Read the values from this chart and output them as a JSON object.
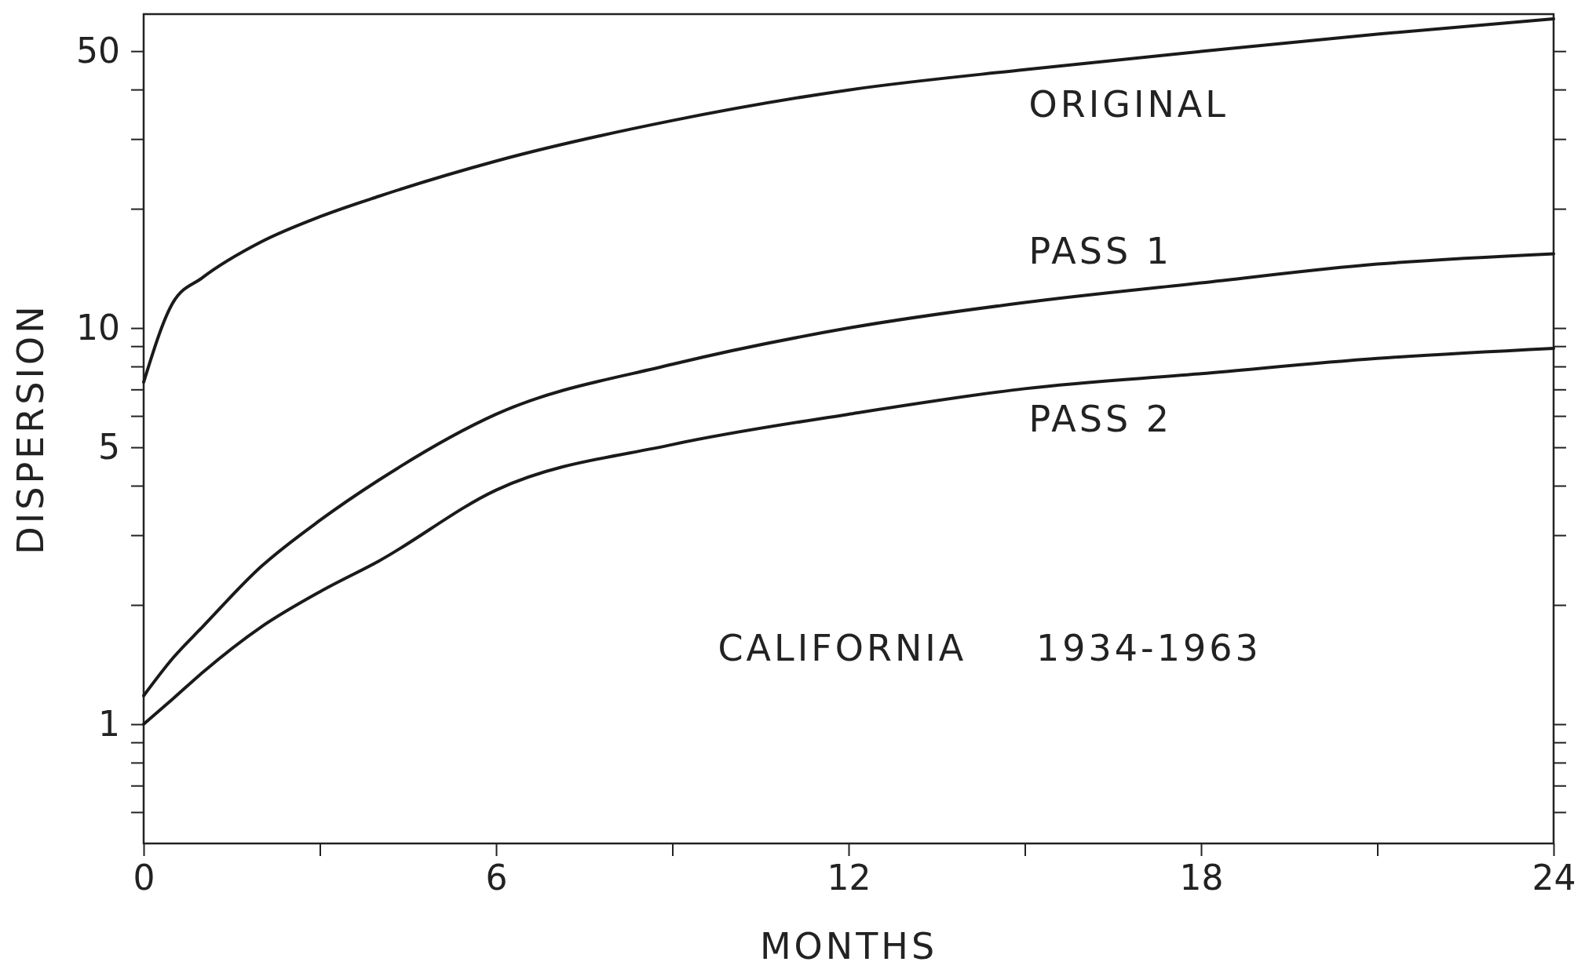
{
  "chart_data": {
    "type": "line",
    "xlabel": "MONTHS",
    "ylabel": "DISPERSION",
    "log": true,
    "grid": false,
    "legend": false,
    "marker": "none",
    "line_style": "solid",
    "xlim": [
      0,
      24
    ],
    "xticks": [
      0,
      {
        "value": 3,
        "label": null
      },
      6,
      {
        "value": 9,
        "label": null
      },
      12,
      {
        "value": 15,
        "label": null
      },
      18,
      {
        "value": 21,
        "label": null
      },
      24
    ],
    "ylim": [
      0.5,
      62
    ],
    "yticks": [
      {
        "value": 0.6,
        "label": null
      },
      {
        "value": 0.7,
        "label": null
      },
      {
        "value": 0.8,
        "label": null
      },
      {
        "value": 0.9,
        "label": null
      },
      1,
      {
        "value": 2,
        "label": null
      },
      {
        "value": 3,
        "label": null
      },
      {
        "value": 4,
        "label": null
      },
      5,
      {
        "value": 6,
        "label": null
      },
      {
        "value": 7,
        "label": null
      },
      {
        "value": 8,
        "label": null
      },
      {
        "value": 9,
        "label": null
      },
      10,
      {
        "value": 20,
        "label": null
      },
      {
        "value": 30,
        "label": null
      },
      {
        "value": 40,
        "label": null
      },
      50
    ],
    "x": [
      0,
      0.5,
      1,
      2,
      3,
      4,
      6,
      9,
      12,
      15,
      18,
      21,
      24
    ],
    "series": [
      {
        "name": "ORIGINAL",
        "color": "#1a1a1a",
        "values": [
          7.3,
          11.6,
          13.4,
          16.5,
          19.1,
          21.5,
          26.4,
          33.4,
          39.9,
          44.9,
          49.9,
          55.2,
          60.3
        ]
      },
      {
        "name": "PASS 1",
        "color": "#1a1a1a",
        "values": [
          1.18,
          1.47,
          1.76,
          2.5,
          3.27,
          4.13,
          6.06,
          8.1,
          10,
          11.6,
          13,
          14.5,
          15.4
        ]
      },
      {
        "name": "PASS 2",
        "color": "#1a1a1a",
        "values": [
          1,
          1.16,
          1.35,
          1.76,
          2.16,
          2.58,
          3.9,
          5.08,
          6.06,
          7.03,
          7.67,
          8.38,
          8.89
        ]
      }
    ],
    "annotations": [
      "CALIFORNIA 1934-1963"
    ]
  }
}
